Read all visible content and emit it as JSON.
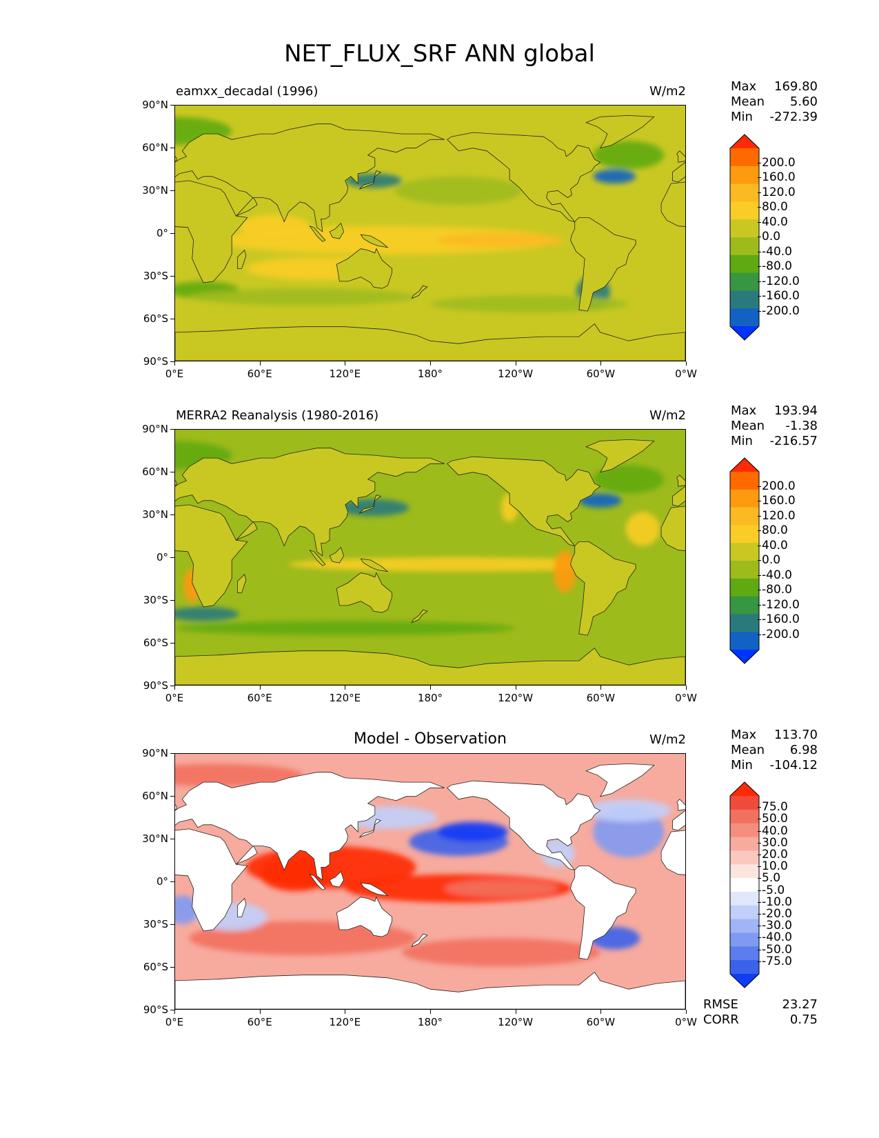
{
  "figure": {
    "title": "NET_FLUX_SRF ANN global"
  },
  "axes": {
    "lat_labels": [
      "90°N",
      "60°N",
      "30°N",
      "0°",
      "30°S",
      "60°S",
      "90°S"
    ],
    "lon_labels": [
      "0°E",
      "60°E",
      "120°E",
      "180°",
      "120°W",
      "60°W",
      "0°W"
    ]
  },
  "panels": [
    {
      "title": "eamxx_decadal (1996)",
      "units": "W/m2",
      "stats": {
        "max_label": "Max",
        "max": "169.80",
        "mean_label": "Mean",
        "mean": "5.60",
        "min_label": "Min",
        "min": "-272.39"
      },
      "colorbar": {
        "labels": [
          "200.0",
          "160.0",
          "120.0",
          "80.0",
          "40.0",
          "0.0",
          "-40.0",
          "-80.0",
          "-120.0",
          "-160.0",
          "-200.0"
        ],
        "colors": [
          "#fe2a05",
          "#fe6a00",
          "#fe9a10",
          "#fcba22",
          "#f9cd25",
          "#c9c823",
          "#9ebb1c",
          "#5faa12",
          "#379641",
          "#2a7a7c",
          "#1262c4",
          "#0033fe"
        ]
      },
      "map_palette": {
        "base": "#c9c823",
        "warm": "#f9cd25",
        "hot": "#fcba22",
        "cool": "#9ebb1c",
        "cooler": "#5faa12",
        "cold": "#2a7a7c",
        "coldest": "#1262c4",
        "land": "#c9c823"
      }
    },
    {
      "title": "MERRA2 Reanalysis (1980-2016)",
      "units": "W/m2",
      "stats": {
        "max_label": "Max",
        "max": "193.94",
        "mean_label": "Mean",
        "mean": "-1.38",
        "min_label": "Min",
        "min": "-216.57"
      },
      "colorbar": {
        "labels": [
          "200.0",
          "160.0",
          "120.0",
          "80.0",
          "40.0",
          "0.0",
          "-40.0",
          "-80.0",
          "-120.0",
          "-160.0",
          "-200.0"
        ],
        "colors": [
          "#fe2a05",
          "#fe6a00",
          "#fe9a10",
          "#fcba22",
          "#f9cd25",
          "#c9c823",
          "#9ebb1c",
          "#5faa12",
          "#379641",
          "#2a7a7c",
          "#1262c4",
          "#0033fe"
        ]
      },
      "map_palette": {
        "base": "#9ebb1c",
        "warm": "#f9cd25",
        "hot": "#fe9a10",
        "cool": "#c9c823",
        "cooler": "#5faa12",
        "cold": "#2a7a7c",
        "coldest": "#1262c4",
        "land": "#c9c823"
      }
    },
    {
      "title": "Model - Observation",
      "units": "W/m2",
      "stats": {
        "max_label": "Max",
        "max": "113.70",
        "mean_label": "Mean",
        "mean": "6.98",
        "min_label": "Min",
        "min": "-104.12"
      },
      "colorbar": {
        "labels": [
          "75.0",
          "50.0",
          "40.0",
          "30.0",
          "20.0",
          "10.0",
          "5.0",
          "-5.0",
          "-10.0",
          "-20.0",
          "-30.0",
          "-40.0",
          "-50.0",
          "-75.0"
        ],
        "colors": [
          "#fe2a05",
          "#f04a3a",
          "#f2705e",
          "#f58e7e",
          "#f7ab9e",
          "#fac8bf",
          "#fde4df",
          "#ffffff",
          "#e1e8fc",
          "#c1cffa",
          "#a1b5f6",
          "#7f9af2",
          "#5c7ded",
          "#3a62ea",
          "#0f3cf5"
        ]
      },
      "map_palette": {
        "base": "#f7ab9e",
        "warm": "#f2705e",
        "hot": "#fe2a05",
        "cool": "#c1cffa",
        "cooler": "#7f9af2",
        "cold": "#3a62ea",
        "coldest": "#0f3cf5",
        "land": "#ffffff"
      },
      "error_stats": {
        "rmse_label": "RMSE",
        "rmse": "23.27",
        "corr_label": "CORR",
        "corr": "0.75"
      }
    }
  ]
}
